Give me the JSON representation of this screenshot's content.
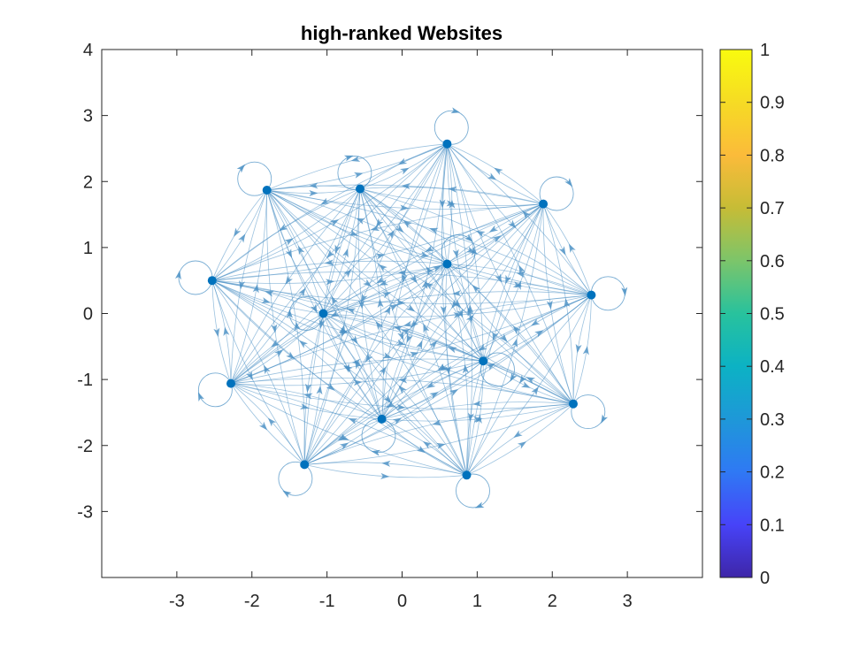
{
  "chart_data": {
    "type": "network",
    "title": "high-ranked Websites",
    "xlabel": "",
    "ylabel": "",
    "xlim": [
      -4,
      4
    ],
    "ylim": [
      -4,
      4
    ],
    "x_ticks": [
      -3,
      -2,
      -1,
      0,
      1,
      2,
      3
    ],
    "y_ticks": [
      -3,
      -2,
      -1,
      0,
      1,
      2,
      3,
      4
    ],
    "grid": false,
    "directed": true,
    "self_loops": true,
    "edge_color": "#4a90c4",
    "node_color": "#0072bd",
    "nodes": [
      {
        "x": 0.6,
        "y": 2.57
      },
      {
        "x": 1.88,
        "y": 1.66
      },
      {
        "x": 2.52,
        "y": 0.28
      },
      {
        "x": 2.28,
        "y": -1.37
      },
      {
        "x": 0.86,
        "y": -2.45
      },
      {
        "x": -1.3,
        "y": -2.29
      },
      {
        "x": -2.28,
        "y": -1.06
      },
      {
        "x": -2.53,
        "y": 0.5
      },
      {
        "x": -1.8,
        "y": 1.87
      },
      {
        "x": -0.56,
        "y": 1.89
      },
      {
        "x": 0.6,
        "y": 0.75
      },
      {
        "x": -1.05,
        "y": 0.0
      },
      {
        "x": 1.08,
        "y": -0.72
      },
      {
        "x": -0.27,
        "y": -1.6
      }
    ],
    "colorbar": {
      "limits": [
        0,
        1
      ],
      "ticks": [
        0,
        0.1,
        0.2,
        0.3,
        0.4,
        0.5,
        0.6,
        0.7,
        0.8,
        0.9,
        1
      ],
      "colormap": [
        "#3e26a8",
        "#4743f8",
        "#2f79f4",
        "#1e98d8",
        "#0cb2c4",
        "#28c29d",
        "#7cc56a",
        "#c6bc36",
        "#fbbb3a",
        "#f6db24",
        "#f9fb0e"
      ]
    }
  }
}
